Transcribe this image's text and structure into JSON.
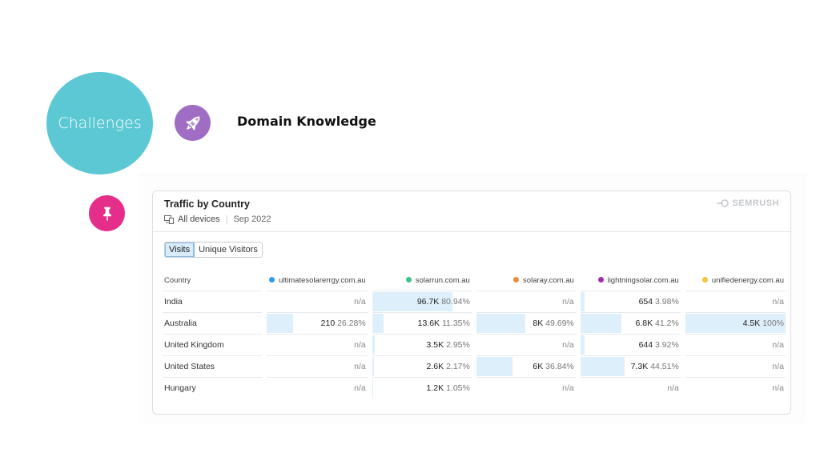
{
  "slide": {
    "circle_label": "Challenges",
    "heading": "Domain Knowledge"
  },
  "card": {
    "title": "Traffic by Country",
    "devices": "All devices",
    "date": "Sep 2022",
    "brand": "SEMRUSH",
    "toggle": {
      "visits": "Visits",
      "unique": "Unique Visitors",
      "selected": "Visits"
    },
    "country_header": "Country",
    "domains": [
      {
        "name": "ultimatesolarerrgy.com.au",
        "color": "#2e9bef"
      },
      {
        "name": "solarrun.com.au",
        "color": "#3ec58c"
      },
      {
        "name": "solaray.com.au",
        "color": "#f08a3d"
      },
      {
        "name": "lightningsolar.com.au",
        "color": "#9b2fae"
      },
      {
        "name": "unifiedenergy.com.au",
        "color": "#f5c242"
      }
    ],
    "rows": [
      {
        "country": "India",
        "cells": [
          {
            "value": "",
            "pct": "",
            "na": "n/a",
            "share": 0
          },
          {
            "value": "96.7K",
            "pct": "80.94%",
            "na": "",
            "share": 80.94
          },
          {
            "value": "",
            "pct": "",
            "na": "n/a",
            "share": 0
          },
          {
            "value": "654",
            "pct": "3.98%",
            "na": "",
            "share": 3.98
          },
          {
            "value": "",
            "pct": "",
            "na": "n/a",
            "share": 0
          }
        ]
      },
      {
        "country": "Australia",
        "cells": [
          {
            "value": "210",
            "pct": "26.28%",
            "na": "",
            "share": 26.28
          },
          {
            "value": "13.6K",
            "pct": "11.35%",
            "na": "",
            "share": 11.35
          },
          {
            "value": "8K",
            "pct": "49.69%",
            "na": "",
            "share": 49.69
          },
          {
            "value": "6.8K",
            "pct": "41.2%",
            "na": "",
            "share": 41.2
          },
          {
            "value": "4.5K",
            "pct": "100%",
            "na": "",
            "share": 100
          }
        ]
      },
      {
        "country": "United Kingdom",
        "cells": [
          {
            "value": "",
            "pct": "",
            "na": "n/a",
            "share": 0
          },
          {
            "value": "3.5K",
            "pct": "2.95%",
            "na": "",
            "share": 2.95
          },
          {
            "value": "",
            "pct": "",
            "na": "n/a",
            "share": 0
          },
          {
            "value": "644",
            "pct": "3.92%",
            "na": "",
            "share": 3.92
          },
          {
            "value": "",
            "pct": "",
            "na": "n/a",
            "share": 0
          }
        ]
      },
      {
        "country": "United States",
        "cells": [
          {
            "value": "",
            "pct": "",
            "na": "n/a",
            "share": 0
          },
          {
            "value": "2.6K",
            "pct": "2.17%",
            "na": "",
            "share": 2.17
          },
          {
            "value": "6K",
            "pct": "36.84%",
            "na": "",
            "share": 36.84
          },
          {
            "value": "7.3K",
            "pct": "44.51%",
            "na": "",
            "share": 44.51
          },
          {
            "value": "",
            "pct": "",
            "na": "n/a",
            "share": 0
          }
        ]
      },
      {
        "country": "Hungary",
        "cells": [
          {
            "value": "",
            "pct": "",
            "na": "n/a",
            "share": 0
          },
          {
            "value": "1.2K",
            "pct": "1.05%",
            "na": "",
            "share": 1.05
          },
          {
            "value": "",
            "pct": "",
            "na": "n/a",
            "share": 0
          },
          {
            "value": "",
            "pct": "",
            "na": "n/a",
            "share": 0
          },
          {
            "value": "",
            "pct": "",
            "na": "n/a",
            "share": 0
          }
        ]
      }
    ]
  },
  "icons": {
    "rocket": "rocket-icon",
    "pin": "pushpin-icon",
    "devices": "devices-icon",
    "brand": "semrush-logo-icon"
  }
}
